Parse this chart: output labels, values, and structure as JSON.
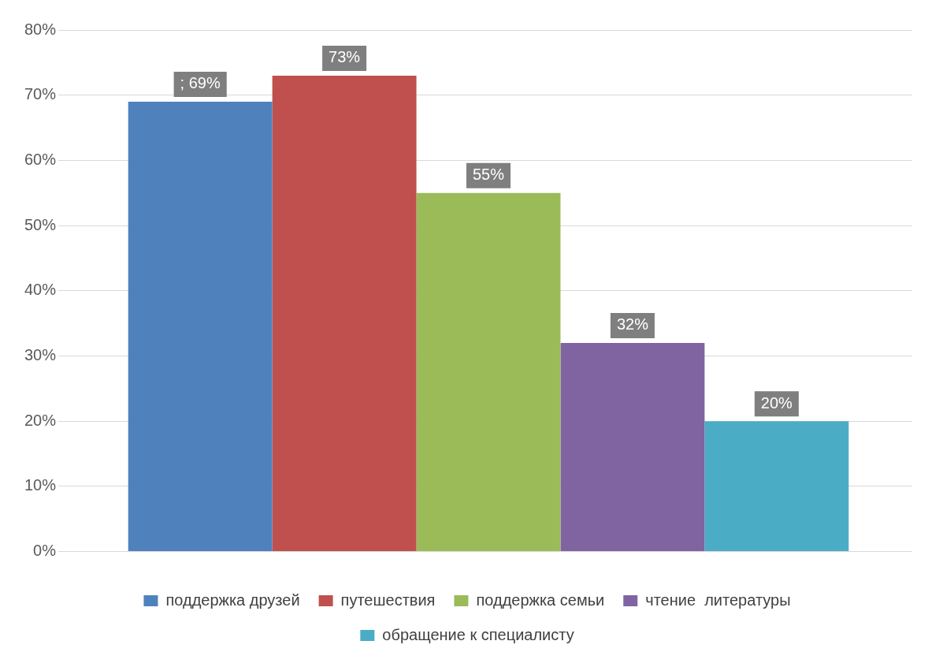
{
  "chart_data": {
    "type": "bar",
    "categories": [
      null
    ],
    "series": [
      {
        "name": "поддержка друзей",
        "color": "#4f81bd",
        "values": [
          69
        ],
        "value_labels": [
          "; 69%"
        ]
      },
      {
        "name": "путешествия",
        "color": "#c0504d",
        "values": [
          73
        ],
        "value_labels": [
          "73%"
        ]
      },
      {
        "name": "поддержка семьи",
        "color": "#9bbb59",
        "values": [
          55
        ],
        "value_labels": [
          "55%"
        ]
      },
      {
        "name": "чтение  литературы",
        "color": "#8064a2",
        "values": [
          32
        ],
        "value_labels": [
          "32%"
        ]
      },
      {
        "name": "обращение к специалисту",
        "color": "#4bacc6",
        "values": [
          20
        ],
        "value_labels": [
          "20%"
        ]
      }
    ],
    "ylim": [
      0,
      80
    ],
    "yticks": [
      {
        "value": 0,
        "label": "0%"
      },
      {
        "value": 10,
        "label": "10%"
      },
      {
        "value": 20,
        "label": "20%"
      },
      {
        "value": 30,
        "label": "30%"
      },
      {
        "value": 40,
        "label": "40%"
      },
      {
        "value": 50,
        "label": "50%"
      },
      {
        "value": 60,
        "label": "60%"
      },
      {
        "value": 70,
        "label": "70%"
      },
      {
        "value": 80,
        "label": "80%"
      }
    ],
    "grid": "y",
    "legend": "bottom"
  }
}
